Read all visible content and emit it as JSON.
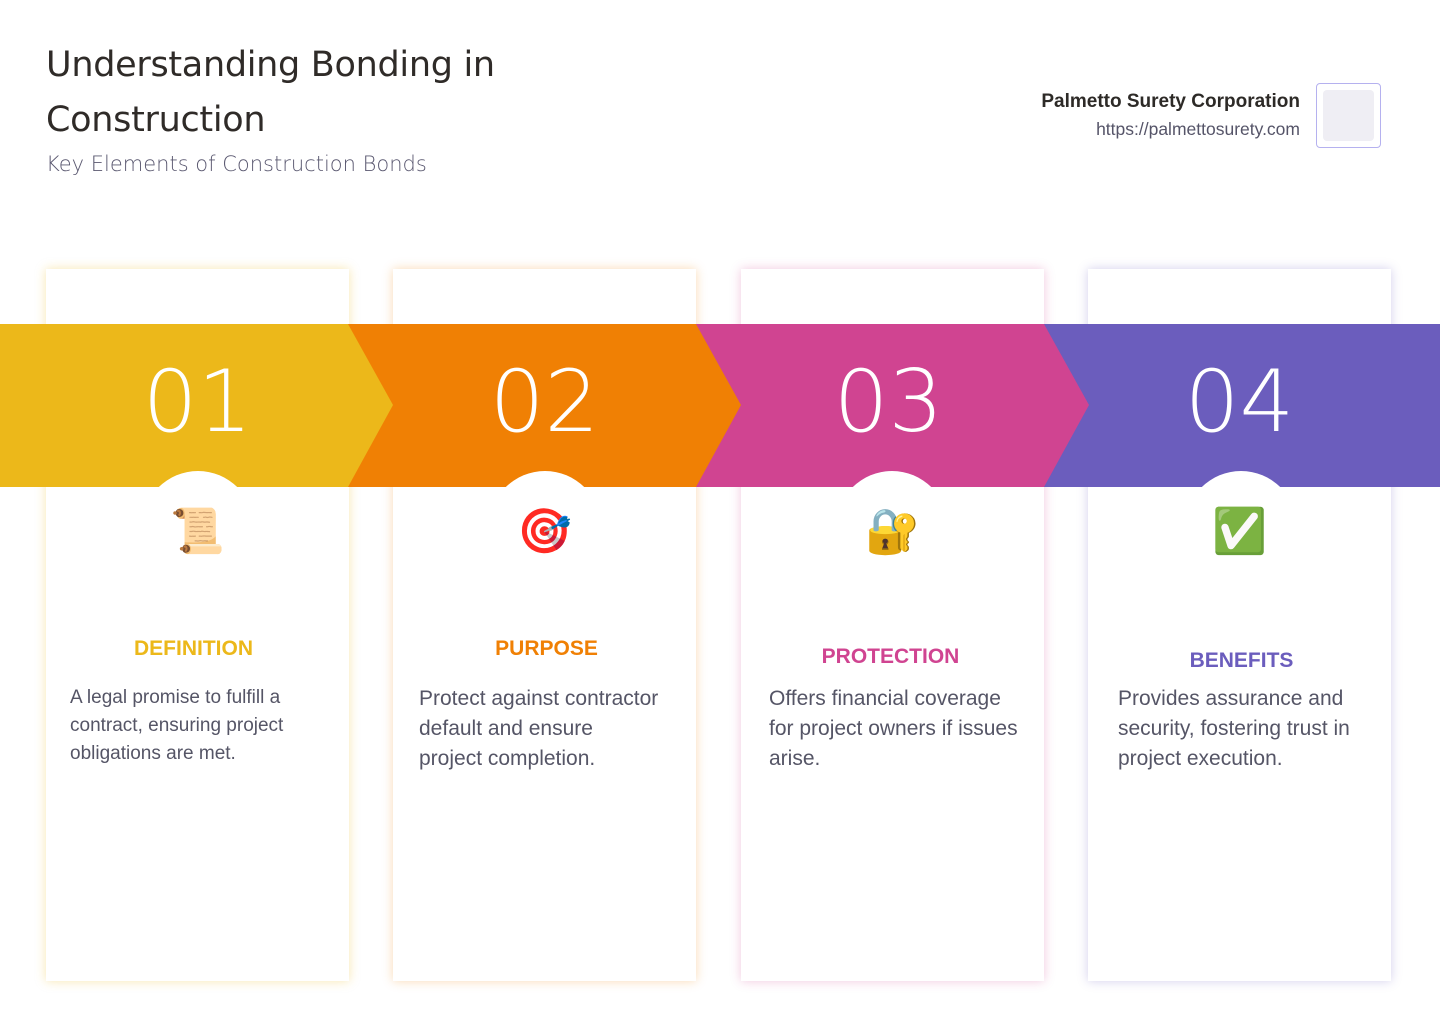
{
  "header": {
    "title": "Understanding Bonding in Construction",
    "subtitle": "Key Elements of Construction Bonds"
  },
  "brand": {
    "name": "Palmetto Surety Corporation",
    "url": "https://palmettosurety.com"
  },
  "steps": [
    {
      "number": "01",
      "icon": "scroll-icon",
      "glyph": "📜",
      "title": "DEFINITION",
      "text": "A legal promise to fulfill a contract, ensuring project obligations are met.",
      "color": "#ecb81a"
    },
    {
      "number": "02",
      "icon": "target-dart-icon",
      "glyph": "🎯",
      "title": "PURPOSE",
      "text": "Protect against contractor default and ensure project completion.",
      "color": "#f08004"
    },
    {
      "number": "03",
      "icon": "lock-key-icon",
      "glyph": "🔐",
      "title": "PROTECTION",
      "text": "Offers financial coverage for project owners if issues arise.",
      "color": "#d04491"
    },
    {
      "number": "04",
      "icon": "check-mark-icon",
      "glyph": "✅",
      "title": "BENEFITS",
      "text": "Provides assurance and security, fostering trust in project execution.",
      "color": "#6b5dbd"
    }
  ]
}
